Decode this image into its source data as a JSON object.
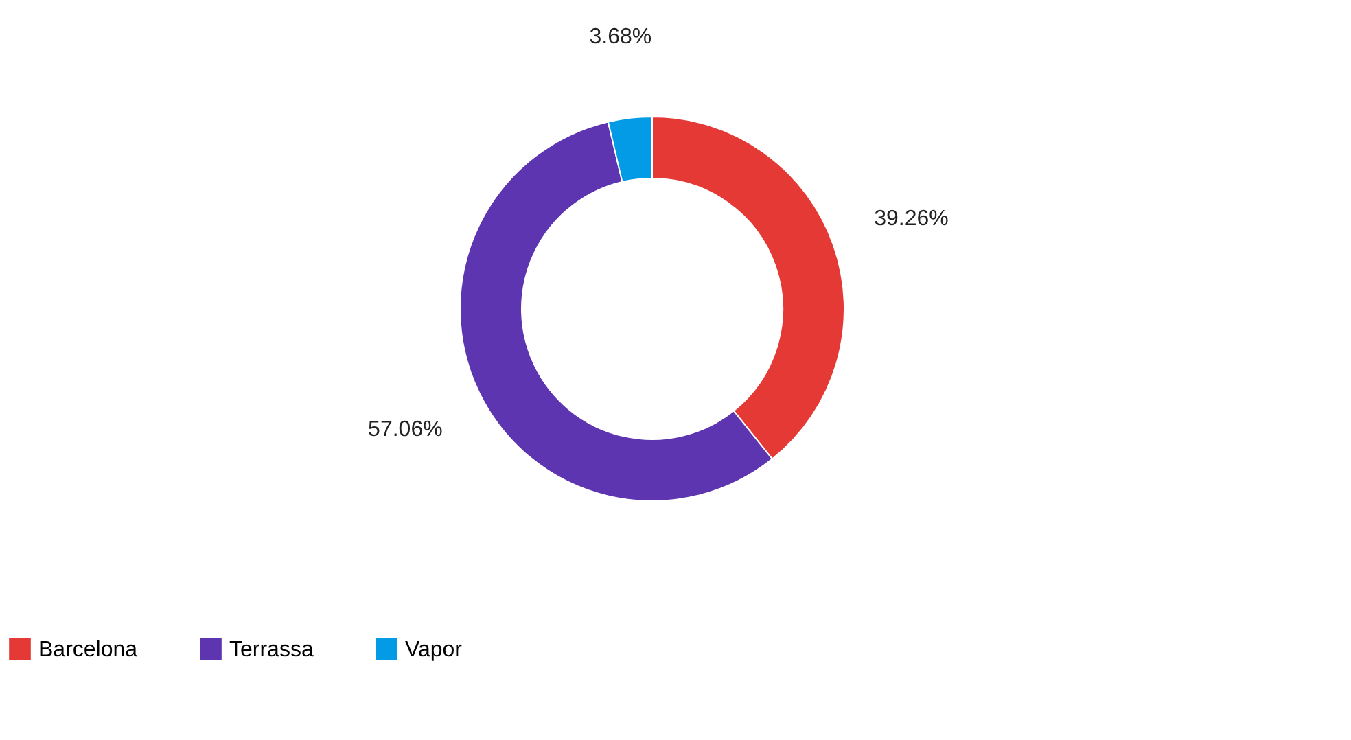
{
  "chart_data": {
    "type": "donut",
    "categories": [
      "Barcelona",
      "Terrassa",
      "Vapor"
    ],
    "values": [
      39.26,
      57.06,
      3.68
    ],
    "colors": [
      "#e53935",
      "#5e35b1",
      "#039be5"
    ],
    "value_labels": [
      "39.26%",
      "57.06%",
      "3.68%"
    ],
    "legend": "bottom"
  }
}
